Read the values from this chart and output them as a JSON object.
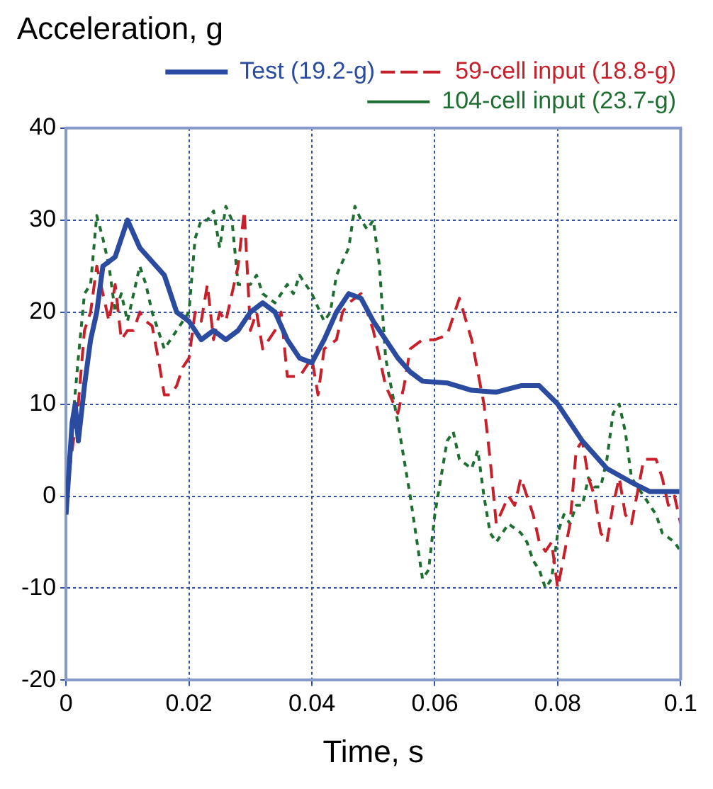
{
  "chart_data": {
    "type": "line",
    "ylabel": "Acceleration, g",
    "xlabel": "Time, s",
    "xlim": [
      0,
      0.1
    ],
    "xticks": [
      0,
      0.02,
      0.04,
      0.06,
      0.08,
      0.1
    ],
    "ylim": [
      -20,
      40
    ],
    "yticks": [
      -20,
      -10,
      0,
      10,
      20,
      30,
      40
    ],
    "grid": true,
    "legend": "top right",
    "marker": "none",
    "series": [
      {
        "name": "Test (19.2-g)",
        "color": "#2b4ba0",
        "line_style": "solid",
        "x": [
          0,
          0.001,
          0.0015,
          0.002,
          0.003,
          0.004,
          0.005,
          0.006,
          0.008,
          0.01,
          0.012,
          0.014,
          0.016,
          0.018,
          0.02,
          0.022,
          0.024,
          0.026,
          0.028,
          0.03,
          0.032,
          0.034,
          0.036,
          0.038,
          0.04,
          0.042,
          0.044,
          0.046,
          0.048,
          0.05,
          0.052,
          0.054,
          0.056,
          0.058,
          0.062,
          0.066,
          0.07,
          0.074,
          0.077,
          0.08,
          0.084,
          0.088,
          0.092,
          0.095,
          0.1
        ],
        "values": [
          -2,
          8,
          10,
          6,
          12,
          17,
          20,
          25,
          26,
          30,
          27,
          25.5,
          24,
          20,
          19,
          17,
          18,
          17,
          18,
          20,
          21,
          20,
          17,
          15,
          14.5,
          17,
          20,
          22,
          21.5,
          19,
          17,
          15,
          13.5,
          12.5,
          12.3,
          11.5,
          11.3,
          12,
          12,
          10,
          6,
          3,
          1.5,
          0.5,
          0.5
        ]
      },
      {
        "name": "59-cell input (18.8-g)",
        "color": "#c8202a",
        "line_style": "dashed",
        "x": [
          0,
          0.002,
          0.003,
          0.004,
          0.005,
          0.006,
          0.007,
          0.008,
          0.009,
          0.01,
          0.011,
          0.012,
          0.013,
          0.014,
          0.015,
          0.016,
          0.017,
          0.018,
          0.019,
          0.02,
          0.021,
          0.022,
          0.023,
          0.024,
          0.025,
          0.026,
          0.028,
          0.029,
          0.03,
          0.031,
          0.032,
          0.033,
          0.034,
          0.035,
          0.036,
          0.038,
          0.04,
          0.041,
          0.042,
          0.044,
          0.045,
          0.046,
          0.048,
          0.05,
          0.052,
          0.054,
          0.055,
          0.056,
          0.058,
          0.06,
          0.062,
          0.064,
          0.066,
          0.068,
          0.069,
          0.07,
          0.072,
          0.073,
          0.074,
          0.075,
          0.076,
          0.077,
          0.078,
          0.079,
          0.08,
          0.082,
          0.083,
          0.084,
          0.085,
          0.086,
          0.087,
          0.088,
          0.089,
          0.09,
          0.091,
          0.092,
          0.094,
          0.096,
          0.097,
          0.098,
          0.099,
          0.1
        ],
        "values": [
          0,
          10,
          18,
          20,
          25,
          22,
          19,
          23,
          17,
          18,
          18,
          20,
          19,
          18.5,
          15,
          11,
          11,
          12,
          14,
          15,
          20,
          19,
          23,
          17,
          20,
          19,
          25,
          31,
          18,
          20,
          16,
          17,
          18,
          20,
          13,
          13,
          15,
          11,
          16,
          17,
          20,
          21,
          22,
          18,
          12,
          9,
          12,
          16,
          17,
          17,
          17.5,
          21.5,
          17,
          10,
          4,
          -3,
          0,
          -1,
          2,
          0,
          -2,
          -5,
          -6,
          -5,
          -10,
          -3,
          5,
          6,
          2,
          0,
          -4,
          -5,
          -1,
          2,
          -2,
          -3,
          4,
          4,
          2,
          -1,
          0,
          -3
        ]
      },
      {
        "name": "104-cell input (23.7-g)",
        "color": "#1e6e32",
        "line_style": "dotted",
        "x": [
          0,
          0.002,
          0.003,
          0.004,
          0.005,
          0.006,
          0.007,
          0.008,
          0.009,
          0.01,
          0.011,
          0.012,
          0.013,
          0.014,
          0.015,
          0.016,
          0.017,
          0.018,
          0.019,
          0.02,
          0.021,
          0.022,
          0.023,
          0.024,
          0.025,
          0.026,
          0.027,
          0.028,
          0.03,
          0.031,
          0.032,
          0.034,
          0.036,
          0.037,
          0.038,
          0.039,
          0.04,
          0.042,
          0.043,
          0.044,
          0.046,
          0.047,
          0.048,
          0.049,
          0.05,
          0.051,
          0.052,
          0.054,
          0.056,
          0.058,
          0.059,
          0.06,
          0.061,
          0.062,
          0.063,
          0.064,
          0.066,
          0.067,
          0.068,
          0.069,
          0.07,
          0.071,
          0.072,
          0.074,
          0.075,
          0.076,
          0.077,
          0.078,
          0.079,
          0.08,
          0.081,
          0.082,
          0.083,
          0.084,
          0.085,
          0.086,
          0.087,
          0.088,
          0.089,
          0.09,
          0.091,
          0.092,
          0.094,
          0.096,
          0.097,
          0.099,
          0.1
        ],
        "values": [
          0,
          15,
          22,
          23,
          30.5,
          28,
          25,
          20,
          22,
          19,
          22,
          25,
          23,
          20,
          18,
          16,
          17,
          18,
          19,
          20,
          28,
          30,
          30,
          31,
          27,
          31.5,
          30,
          23,
          23,
          24,
          22,
          21,
          23,
          22,
          24,
          23,
          22,
          19,
          20,
          24,
          27,
          31.5,
          30,
          29,
          30,
          25,
          15,
          8,
          0,
          -9,
          -8,
          -2,
          2,
          6,
          7,
          4,
          3,
          5,
          0,
          -4,
          -5,
          -4,
          -3,
          -4,
          -5,
          -7,
          -8,
          -10,
          -9,
          -4,
          -2,
          -3,
          -1,
          -1,
          2,
          1,
          1,
          4,
          9,
          10,
          7,
          2,
          0,
          -2,
          -4,
          -5,
          -6
        ]
      }
    ]
  }
}
